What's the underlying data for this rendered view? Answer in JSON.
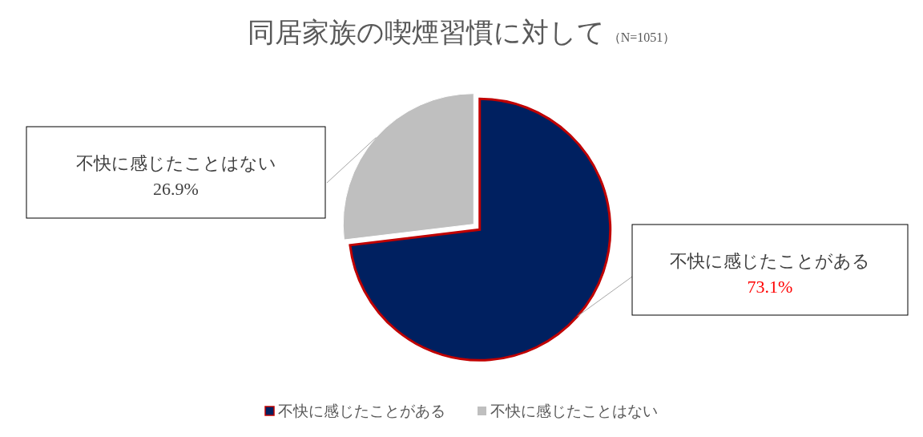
{
  "chart_data": {
    "type": "pie",
    "title": "同居家族の喫煙習慣に対して",
    "subtitle": "（N=1051）",
    "categories": [
      "不快に感じたことがある",
      "不快に感じたことはない"
    ],
    "values": [
      73.1,
      26.9
    ],
    "colors": [
      "#002060",
      "#bfbfbf"
    ],
    "value_labels": [
      "73.1%",
      "26.9%"
    ],
    "legend": "bottom"
  }
}
